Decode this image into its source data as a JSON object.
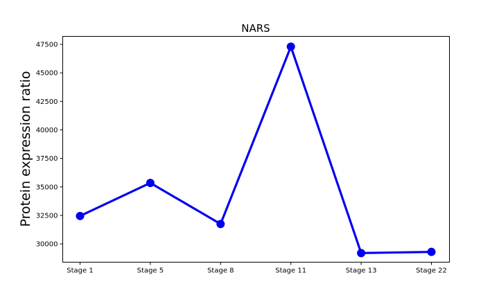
{
  "chart_data": {
    "type": "line",
    "title": "NARS",
    "xlabel": "",
    "ylabel": "Protein expression ratio",
    "categories": [
      "Stage 1",
      "Stage 5",
      "Stage 8",
      "Stage 11",
      "Stage 13",
      "Stage 22"
    ],
    "series": [
      {
        "values": [
          32450,
          35350,
          31750,
          47300,
          29200,
          29300
        ],
        "color": "#0000ee",
        "marker": "circle"
      }
    ],
    "ylim": [
      28400,
      48200
    ],
    "yticks": [
      30000,
      32500,
      35000,
      37500,
      40000,
      42500,
      45000,
      47500
    ],
    "ytick_labels": [
      "30000",
      "32500",
      "35000",
      "37500",
      "40000",
      "42500",
      "45000",
      "47500"
    ],
    "grid": false,
    "legend": "none"
  }
}
